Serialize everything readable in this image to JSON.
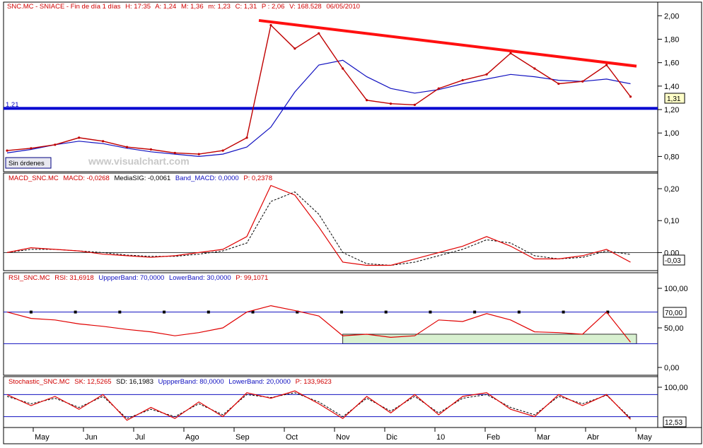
{
  "colors": {
    "price": "#c00000",
    "ma": "#1010c0",
    "resistance": "#ff1010",
    "support": "#0000d0",
    "macd": "#e00000",
    "signal": "#000000",
    "band": "#1010c0",
    "rsi_fill": "#d8f0d0",
    "header_text": "#d00000",
    "param_text": "#1010c0"
  },
  "x_axis": {
    "labels": [
      "May",
      "Jun",
      "Jul",
      "Ago",
      "Sep",
      "Oct",
      "Nov",
      "Dic",
      "10",
      "Feb",
      "Mar",
      "Abr",
      "May"
    ]
  },
  "price_panel": {
    "header": {
      "title": "SNC.MC - SNIACE - Fin de día 1 días",
      "fields": [
        "H: 17:35",
        "A: 1,24",
        "M: 1,36",
        "m: 1,23",
        "C: 1,31",
        "P : 2,06",
        "V: 168.528",
        "06/05/2010"
      ]
    },
    "watermark": "www.visualchart.com",
    "badge": "Sin órdenes",
    "support_label": "1.21",
    "last_label": "1,31",
    "ticks": [
      "2,00",
      "1,80",
      "1,60",
      "1,40",
      "1,20",
      "1,00",
      "0,80"
    ]
  },
  "macd_panel": {
    "header": {
      "title": "MACD_SNC.MC",
      "fields": [
        "MACD: -0,0268",
        "MediaSIG: -0,0061",
        "Band_MACD: 0,0000",
        "P: 0,2378"
      ]
    },
    "ticks": [
      "0,20",
      "0,10",
      "0,00"
    ],
    "last_label": "-0,03"
  },
  "rsi_panel": {
    "header": {
      "title": "RSI_SNC.MC",
      "fields": [
        "RSI: 31,6918",
        "UppperBand: 70,0000",
        "LowerBand: 30,0000",
        "P: 99,1071"
      ]
    },
    "ticks": [
      "100,00",
      "50,00",
      "0,00"
    ],
    "band_label": "70,00"
  },
  "stoch_panel": {
    "header": {
      "title": "Stochastic_SNC.MC",
      "fields": [
        "SK: 12,5265",
        "SD: 16,1983",
        "UppperBand: 80,0000",
        "LowerBand: 20,0000",
        "P: 133,9623"
      ]
    },
    "ticks": [
      "100,00"
    ],
    "last_label": "12,53"
  },
  "chart_data": [
    {
      "type": "line",
      "panel": "price",
      "ylim": [
        0.7,
        2.05
      ],
      "x": [
        0,
        2,
        4,
        6,
        8,
        10,
        12,
        14,
        16,
        18,
        20,
        22,
        24,
        26,
        28,
        30,
        32,
        34,
        36,
        38,
        40,
        42,
        44,
        46,
        48,
        50,
        52
      ],
      "series": [
        {
          "values": [
            0.85,
            0.87,
            0.9,
            0.96,
            0.93,
            0.88,
            0.86,
            0.83,
            0.82,
            0.85,
            0.96,
            1.92,
            1.72,
            1.85,
            1.55,
            1.28,
            1.25,
            1.24,
            1.38,
            1.45,
            1.5,
            1.68,
            1.55,
            1.42,
            1.44,
            1.58,
            1.31
          ]
        },
        {
          "values": [
            0.83,
            0.86,
            0.9,
            0.93,
            0.91,
            0.87,
            0.84,
            0.82,
            0.8,
            0.82,
            0.88,
            1.05,
            1.35,
            1.58,
            1.62,
            1.48,
            1.38,
            1.34,
            1.37,
            1.42,
            1.46,
            1.5,
            1.48,
            1.45,
            1.44,
            1.46,
            1.42
          ]
        }
      ],
      "support": 1.21,
      "trendline": {
        "x": [
          21,
          52.5
        ],
        "y": [
          1.96,
          1.57
        ]
      }
    },
    {
      "type": "line",
      "panel": "macd",
      "ylim": [
        -0.05,
        0.22
      ],
      "x": [
        0,
        2,
        4,
        6,
        8,
        10,
        12,
        14,
        16,
        18,
        20,
        22,
        24,
        26,
        28,
        30,
        32,
        34,
        36,
        38,
        40,
        42,
        44,
        46,
        48,
        50,
        52
      ],
      "series": [
        {
          "values": [
            0.0,
            0.015,
            0.01,
            0.005,
            -0.005,
            -0.01,
            -0.015,
            -0.01,
            0.0,
            0.01,
            0.05,
            0.21,
            0.18,
            0.08,
            -0.03,
            -0.04,
            -0.04,
            -0.02,
            0.0,
            0.02,
            0.05,
            0.02,
            -0.02,
            -0.02,
            -0.01,
            0.01,
            -0.03
          ]
        },
        {
          "values": [
            0.0,
            0.01,
            0.01,
            0.005,
            0.0,
            -0.008,
            -0.012,
            -0.012,
            -0.005,
            0.005,
            0.03,
            0.16,
            0.19,
            0.12,
            0.0,
            -0.035,
            -0.04,
            -0.03,
            -0.01,
            0.01,
            0.04,
            0.03,
            -0.01,
            -0.02,
            -0.015,
            0.005,
            -0.006
          ]
        }
      ]
    },
    {
      "type": "line",
      "panel": "rsi",
      "ylim": [
        0,
        100
      ],
      "x": [
        0,
        2,
        4,
        6,
        8,
        10,
        12,
        14,
        16,
        18,
        20,
        22,
        24,
        26,
        28,
        30,
        32,
        34,
        36,
        38,
        40,
        42,
        44,
        46,
        48,
        50,
        52
      ],
      "series": [
        {
          "values": [
            70,
            62,
            60,
            55,
            52,
            48,
            45,
            40,
            44,
            50,
            70,
            78,
            72,
            65,
            40,
            42,
            38,
            40,
            60,
            58,
            68,
            60,
            45,
            44,
            42,
            70,
            32
          ]
        }
      ],
      "bands": [
        30,
        70
      ]
    },
    {
      "type": "line",
      "panel": "stochastic",
      "ylim": [
        0,
        100
      ],
      "x": [
        0,
        2,
        4,
        6,
        8,
        10,
        12,
        14,
        16,
        18,
        20,
        22,
        24,
        26,
        28,
        30,
        32,
        34,
        36,
        38,
        40,
        42,
        44,
        46,
        48,
        50,
        52
      ],
      "series": [
        {
          "values": [
            80,
            50,
            75,
            40,
            80,
            10,
            45,
            15,
            60,
            20,
            85,
            70,
            90,
            55,
            15,
            75,
            30,
            80,
            25,
            75,
            85,
            40,
            20,
            80,
            50,
            80,
            12.5
          ]
        },
        {
          "values": [
            75,
            55,
            70,
            45,
            75,
            15,
            40,
            20,
            55,
            25,
            80,
            72,
            85,
            60,
            20,
            70,
            35,
            75,
            30,
            70,
            80,
            45,
            25,
            75,
            55,
            78,
            16.2
          ]
        }
      ],
      "bands": [
        20,
        80
      ]
    }
  ]
}
